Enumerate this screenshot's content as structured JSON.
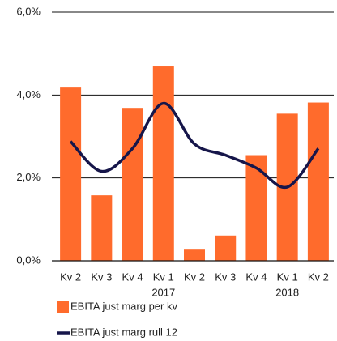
{
  "chart_data": {
    "type": "bar",
    "categories": [
      "Kv 2",
      "Kv 3",
      "Kv 4",
      "Kv 1",
      "Kv 2",
      "Kv 3",
      "Kv 4",
      "Kv 1",
      "Kv 2"
    ],
    "category_years": [
      null,
      null,
      null,
      "2017",
      null,
      null,
      null,
      "2018",
      null
    ],
    "series": [
      {
        "name": "EBITA just marg per kv",
        "type": "bar",
        "color": "#ff6b2c",
        "values": [
          4.18,
          1.58,
          3.69,
          4.69,
          0.27,
          0.61,
          2.55,
          3.55,
          3.82
        ]
      },
      {
        "name": "EBITA just marg rull 12",
        "type": "line",
        "color": "#16164a",
        "values": [
          2.88,
          2.16,
          2.71,
          3.8,
          2.82,
          2.55,
          2.24,
          1.78,
          2.71
        ]
      }
    ],
    "ylim": [
      0,
      6
    ],
    "yticks": [
      {
        "value": 0,
        "label": "0,0%"
      },
      {
        "value": 2,
        "label": "2,0%"
      },
      {
        "value": 4,
        "label": "4,0%"
      },
      {
        "value": 6,
        "label": "6,0%"
      }
    ],
    "grid": true
  }
}
